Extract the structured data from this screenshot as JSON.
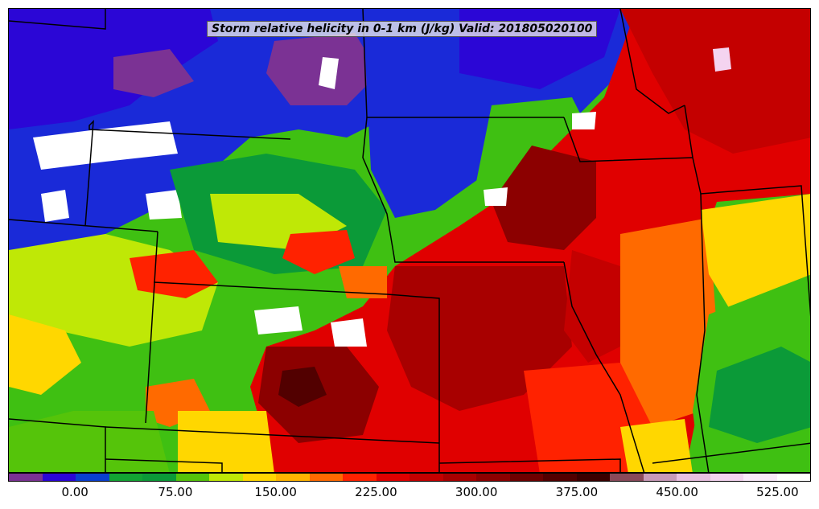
{
  "title": "Storm relative helicity in 0-1 km (J/kg) Valid: 201805020100",
  "colorbar": {
    "colors": [
      "#7b3294",
      "#2b06d6",
      "#0a3fcf",
      "#12a533",
      "#0b9a38",
      "#55c40a",
      "#bfe806",
      "#ffd700",
      "#ffb300",
      "#ff6a00",
      "#ff2200",
      "#e00000",
      "#c40000",
      "#a80000",
      "#8c0000",
      "#6e0000",
      "#520000",
      "#3a0000",
      "#8a4a5a",
      "#c89ab8",
      "#e8c0e0",
      "#f4d4f0",
      "#faeafa",
      "#ffffff"
    ],
    "ticks": [
      {
        "label": "0.00"
      },
      {
        "label": "75.00"
      },
      {
        "label": "150.00"
      },
      {
        "label": "225.00"
      },
      {
        "label": "300.00"
      },
      {
        "label": "375.00"
      },
      {
        "label": "450.00"
      },
      {
        "label": "525.00"
      }
    ]
  }
}
